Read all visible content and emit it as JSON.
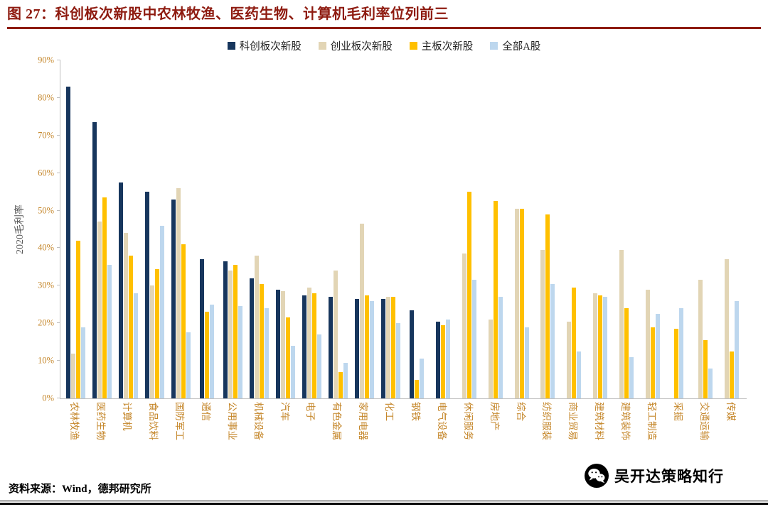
{
  "header": {
    "title": "图 27：科创板次新股中农林牧渔、医药生物、计算机毛利率位列前三"
  },
  "source": {
    "text": "资料来源：Wind，德邦研究所"
  },
  "watermark": {
    "text": "吴开达策略知行",
    "icon": "wechat-icon"
  },
  "colors": {
    "title_red": "#8E1B10",
    "axis_line": "#BFBFBF",
    "tick_text": "#C5872B",
    "ylabel_text": "#595959",
    "legend_text": "#222222",
    "page_bg": "#FFFFFF"
  },
  "chart_data": {
    "type": "bar",
    "title": "图 27：科创板次新股中农林牧渔、医药生物、计算机毛利率位列前三",
    "xlabel": "",
    "ylabel": "2020毛利率",
    "ylim": [
      0,
      90
    ],
    "ytick_step": 10,
    "ytick_suffix": "%",
    "yticks": [
      "0%",
      "10%",
      "20%",
      "30%",
      "40%",
      "50%",
      "60%",
      "70%",
      "80%",
      "90%"
    ],
    "grid": false,
    "legend_position": "top",
    "unit": "percent",
    "categories": [
      "农林牧渔",
      "医药生物",
      "计算机",
      "食品饮料",
      "国防军工",
      "通信",
      "公用事业",
      "机械设备",
      "汽车",
      "电子",
      "有色金属",
      "家用电器",
      "化工",
      "钢铁",
      "电气设备",
      "休闲服务",
      "房地产",
      "综合",
      "纺织服装",
      "商业贸易",
      "建筑材料",
      "建筑装饰",
      "轻工制造",
      "采掘",
      "交通运输",
      "传媒"
    ],
    "series": [
      {
        "name": "科创板次新股",
        "color": "#17365D",
        "values": [
          83,
          73.5,
          57.5,
          55,
          53,
          37,
          36.5,
          32,
          29,
          27.5,
          27,
          26.5,
          26.5,
          23.5,
          20.5,
          null,
          null,
          null,
          null,
          null,
          null,
          null,
          null,
          null,
          null,
          null
        ]
      },
      {
        "name": "创业板次新股",
        "color": "#E2D5B5",
        "values": [
          12,
          47,
          44,
          30,
          56,
          null,
          34,
          38,
          28.5,
          29.5,
          34,
          46.5,
          27,
          null,
          null,
          38.5,
          21,
          50.5,
          39.5,
          20.5,
          28,
          39.5,
          29,
          null,
          31.5,
          37
        ]
      },
      {
        "name": "主板次新股",
        "color": "#FFC000",
        "values": [
          42,
          53.5,
          38,
          34.5,
          41,
          23,
          35.5,
          30.5,
          21.5,
          28,
          7,
          27.5,
          27,
          5,
          19.5,
          55,
          52.5,
          50.5,
          49,
          29.5,
          27.5,
          24,
          19,
          18.5,
          15.5,
          12.5
        ]
      },
      {
        "name": "全部A股",
        "color": "#BDD7EE",
        "values": [
          19,
          35.5,
          28,
          46,
          17.5,
          25,
          24.5,
          24,
          14,
          17,
          9.5,
          26,
          20,
          10.5,
          21,
          31.5,
          27,
          19,
          30.5,
          12.5,
          27,
          11,
          22.5,
          24,
          8,
          26
        ]
      }
    ]
  }
}
